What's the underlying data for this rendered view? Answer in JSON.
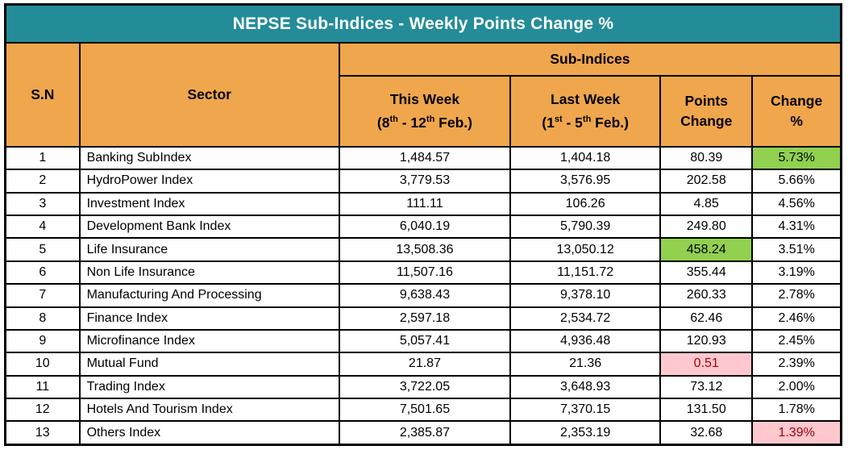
{
  "title": "NEPSE Sub-Indices - Weekly Points Change %",
  "header": {
    "sn": "S.N",
    "sector": "Sector",
    "group": "Sub-Indices",
    "this_week": {
      "line1": "This Week",
      "open": "(8",
      "sup1": "th",
      "mid": " - 12",
      "sup2": "th",
      "close": " Feb.)"
    },
    "last_week": {
      "line1": "Last Week",
      "open": "(1",
      "sup1": "st",
      "mid": " - 5",
      "sup2": "th",
      "close": " Feb.)"
    },
    "points": {
      "line1": "Points",
      "line2": "Change"
    },
    "change": {
      "line1": "Change",
      "line2": "%"
    }
  },
  "colors": {
    "title_bg": "#248C98",
    "title_text": "#FFFFFF",
    "header_bg": "#F0A64D",
    "header_text": "#000000",
    "row_bg": "#FFFFFF",
    "highlight_green": "#92D050",
    "highlight_pink": "#FFC7CE",
    "highlight_pink_text": "#9C0006",
    "border": "#000000"
  },
  "chart_data": {
    "type": "table",
    "title": "NEPSE Sub-Indices - Weekly Points Change %",
    "columns": [
      "S.N",
      "Sector",
      "This Week (8th - 12th Feb.)",
      "Last Week (1st - 5th Feb.)",
      "Points Change",
      "Change %"
    ],
    "rows": [
      {
        "sn": "1",
        "sector": "Banking SubIndex",
        "this_week": "1,484.57",
        "last_week": "1,404.18",
        "points_change": "80.39",
        "change_pct": "5.73%",
        "points_highlight": "none",
        "change_highlight": "green"
      },
      {
        "sn": "2",
        "sector": "HydroPower Index",
        "this_week": "3,779.53",
        "last_week": "3,576.95",
        "points_change": "202.58",
        "change_pct": "5.66%",
        "points_highlight": "none",
        "change_highlight": "none"
      },
      {
        "sn": "3",
        "sector": "Investment Index",
        "this_week": "111.11",
        "last_week": "106.26",
        "points_change": "4.85",
        "change_pct": "4.56%",
        "points_highlight": "none",
        "change_highlight": "none"
      },
      {
        "sn": "4",
        "sector": "Development Bank Index",
        "this_week": "6,040.19",
        "last_week": "5,790.39",
        "points_change": "249.80",
        "change_pct": "4.31%",
        "points_highlight": "none",
        "change_highlight": "none"
      },
      {
        "sn": "5",
        "sector": "Life Insurance",
        "this_week": "13,508.36",
        "last_week": "13,050.12",
        "points_change": "458.24",
        "change_pct": "3.51%",
        "points_highlight": "green",
        "change_highlight": "none"
      },
      {
        "sn": "6",
        "sector": "Non Life Insurance",
        "this_week": "11,507.16",
        "last_week": "11,151.72",
        "points_change": "355.44",
        "change_pct": "3.19%",
        "points_highlight": "none",
        "change_highlight": "none"
      },
      {
        "sn": "7",
        "sector": "Manufacturing And Processing",
        "this_week": "9,638.43",
        "last_week": "9,378.10",
        "points_change": "260.33",
        "change_pct": "2.78%",
        "points_highlight": "none",
        "change_highlight": "none"
      },
      {
        "sn": "8",
        "sector": "Finance Index",
        "this_week": "2,597.18",
        "last_week": "2,534.72",
        "points_change": "62.46",
        "change_pct": "2.46%",
        "points_highlight": "none",
        "change_highlight": "none"
      },
      {
        "sn": "9",
        "sector": "Microfinance Index",
        "this_week": "5,057.41",
        "last_week": "4,936.48",
        "points_change": "120.93",
        "change_pct": "2.45%",
        "points_highlight": "none",
        "change_highlight": "none"
      },
      {
        "sn": "10",
        "sector": "Mutual Fund",
        "this_week": "21.87",
        "last_week": "21.36",
        "points_change": "0.51",
        "change_pct": "2.39%",
        "points_highlight": "pink",
        "change_highlight": "none"
      },
      {
        "sn": "11",
        "sector": "Trading Index",
        "this_week": "3,722.05",
        "last_week": "3,648.93",
        "points_change": "73.12",
        "change_pct": "2.00%",
        "points_highlight": "none",
        "change_highlight": "none"
      },
      {
        "sn": "12",
        "sector": "Hotels And Tourism Index",
        "this_week": "7,501.65",
        "last_week": "7,370.15",
        "points_change": "131.50",
        "change_pct": "1.78%",
        "points_highlight": "none",
        "change_highlight": "none"
      },
      {
        "sn": "13",
        "sector": "Others Index",
        "this_week": "2,385.87",
        "last_week": "2,353.19",
        "points_change": "32.68",
        "change_pct": "1.39%",
        "points_highlight": "none",
        "change_highlight": "pink"
      }
    ]
  }
}
